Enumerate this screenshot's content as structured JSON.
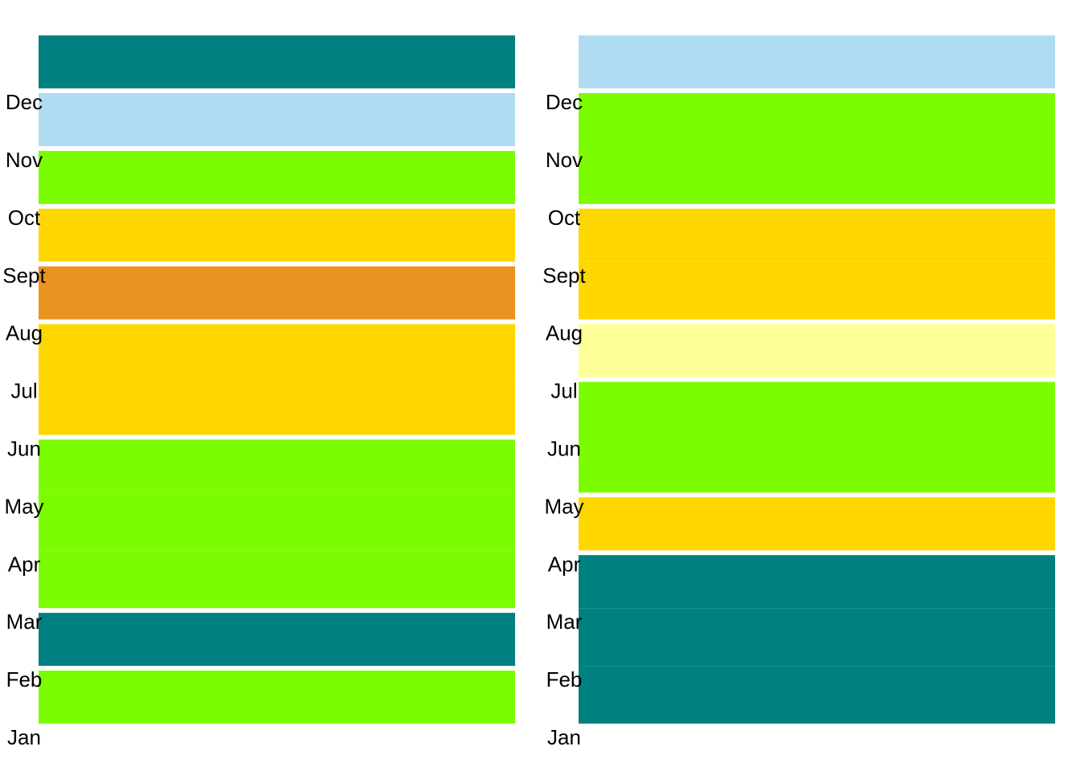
{
  "chart_data": [
    {
      "type": "heatmap",
      "title": "",
      "xlabel": "",
      "ylabel": "",
      "grid": false,
      "month_labels": [
        "Jan",
        "Feb",
        "Mar",
        "Apr",
        "May",
        "Jun",
        "Jul",
        "Aug",
        "Sept",
        "Oct",
        "Nov",
        "Dec"
      ],
      "bands": [
        {
          "color": "#7CFC00"
        },
        {
          "color": "#008080"
        },
        {
          "color": "#7CFC00"
        },
        {
          "color": "#7CFC00"
        },
        {
          "color": "#7CFC00"
        },
        {
          "color": "#FFD700"
        },
        {
          "color": "#FFD700"
        },
        {
          "color": "#EB9320"
        },
        {
          "color": "#FFD700"
        },
        {
          "color": "#7CFC00"
        },
        {
          "color": "#B0DCF3"
        },
        {
          "color": "#008080"
        }
      ]
    },
    {
      "type": "heatmap",
      "title": "",
      "xlabel": "",
      "ylabel": "",
      "grid": false,
      "month_labels": [
        "Jan",
        "Feb",
        "Mar",
        "Apr",
        "May",
        "Jun",
        "Jul",
        "Aug",
        "Sept",
        "Oct",
        "Nov",
        "Dec"
      ],
      "bands": [
        {
          "color": "#008080"
        },
        {
          "color": "#008080"
        },
        {
          "color": "#008080"
        },
        {
          "color": "#FFD700"
        },
        {
          "color": "#7CFC00"
        },
        {
          "color": "#7CFC00"
        },
        {
          "color": "#FFFF99"
        },
        {
          "color": "#FFD700"
        },
        {
          "color": "#FFD700"
        },
        {
          "color": "#7CFC00"
        },
        {
          "color": "#7CFC00"
        },
        {
          "color": "#B0DCF3"
        }
      ]
    }
  ]
}
